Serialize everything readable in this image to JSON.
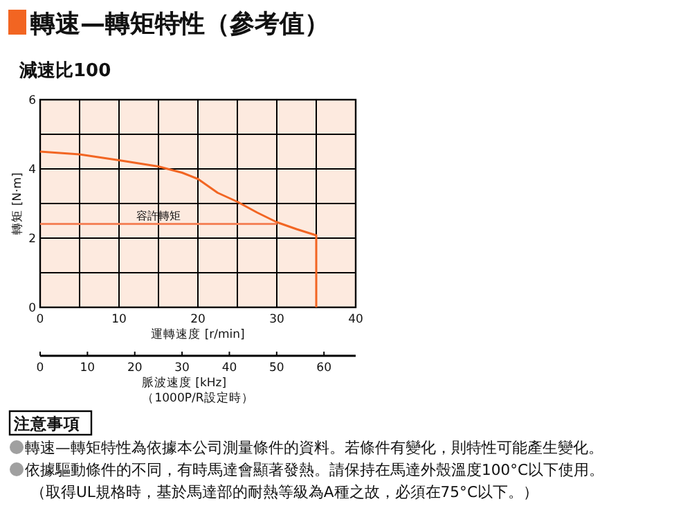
{
  "chart_data": {
    "type": "line",
    "title": "轉速—轉矩特性（參考值）",
    "subtitle": "減速比100",
    "xlabel": "運轉速度 [r/min]",
    "ylabel": "轉矩 [N·m]",
    "x2label": "脈波速度 [kHz]",
    "xlim": [
      0,
      40
    ],
    "ylim": [
      0,
      6
    ],
    "x2lim": [
      0,
      66.7
    ],
    "xticks": [
      0,
      {
        "value": 5,
        "label": null
      },
      10,
      {
        "value": 15,
        "label": null
      },
      20,
      {
        "value": 25,
        "label": null
      },
      30,
      {
        "value": 35,
        "label": null
      },
      40
    ],
    "yticks": [
      0,
      {
        "value": 1,
        "label": null
      },
      2,
      {
        "value": 3,
        "label": null
      },
      4,
      {
        "value": 5,
        "label": null
      },
      6
    ],
    "x2ticks": [
      0,
      10,
      20,
      30,
      40,
      50,
      60
    ],
    "grid": true,
    "line_style": "solid",
    "series": [
      {
        "color": "#f26522",
        "x": [
          0,
          5,
          10,
          15,
          18,
          20,
          22.5,
          25,
          27.5,
          30,
          32.5,
          35,
          35
        ],
        "values": [
          4.5,
          4.42,
          4.25,
          4.07,
          3.89,
          3.71,
          3.31,
          3.05,
          2.74,
          2.46,
          2.26,
          2.08,
          0
        ]
      },
      {
        "name": "容許轉矩",
        "color": "#f4845a",
        "x": [
          0,
          30
        ],
        "values": [
          2.41,
          2.41
        ]
      }
    ],
    "annotations": [
      "（1000P/R設定時）",
      "注意事項",
      "轉速—轉矩特性為依據本公司測量條件的資料。若條件有變化，則特性可能產生變化。",
      "依據驅動條件的不同，有時馬達會顯著發熱。請保持在馬達外殼溫度100°C以下使用。",
      "（取得UL規格時，基於馬達部的耐熱等級為A種之故，必須在75°C以下。）"
    ]
  }
}
